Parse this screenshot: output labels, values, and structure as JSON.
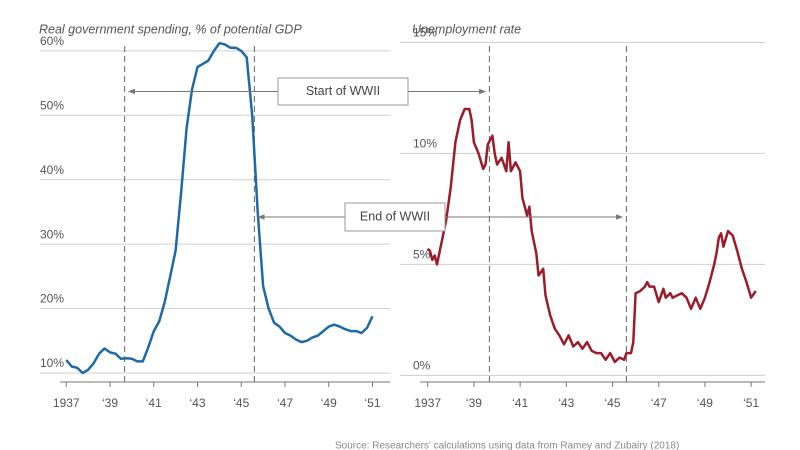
{
  "chart_data": [
    {
      "type": "line",
      "title": "Real government spending, % of potential GDP",
      "xlim": [
        1935.8,
        1951.8
      ],
      "ylim": [
        8.6,
        62
      ],
      "xticks": [
        1937,
        {
          "value": 1939,
          "label": "‘39"
        },
        {
          "value": 1941,
          "label": "‘41"
        },
        {
          "value": 1943,
          "label": "‘43"
        },
        {
          "value": 1945,
          "label": "‘45"
        },
        {
          "value": 1947,
          "label": "‘47"
        },
        {
          "value": 1949,
          "label": "‘49"
        },
        {
          "value": 1951,
          "label": "‘51"
        }
      ],
      "yticks": [
        {
          "value": 10,
          "label": "10%"
        },
        {
          "value": 20,
          "label": "20%"
        },
        {
          "value": 30,
          "label": "30%"
        },
        {
          "value": 40,
          "label": "40%"
        },
        {
          "value": 50,
          "label": "50%"
        },
        {
          "value": 60,
          "label": "60%"
        }
      ],
      "grid": true,
      "series": [
        {
          "color": "#1f6aa5",
          "x": [
            1937,
            1937.25,
            1937.5,
            1937.75,
            1938,
            1938.25,
            1938.5,
            1938.75,
            1939,
            1939.25,
            1939.5,
            1939.75,
            1940,
            1940.25,
            1940.5,
            1940.75,
            1941,
            1941.25,
            1941.5,
            1941.75,
            1942,
            1942.25,
            1942.5,
            1942.75,
            1943,
            1943.25,
            1943.5,
            1943.75,
            1944,
            1944.25,
            1944.5,
            1944.75,
            1945,
            1945.25,
            1945.5,
            1945.75,
            1946,
            1946.25,
            1946.5,
            1946.75,
            1947,
            1947.25,
            1947.5,
            1947.75,
            1948,
            1948.25,
            1948.5,
            1948.75,
            1949,
            1949.25,
            1949.5,
            1949.75,
            1950,
            1950.25,
            1950.5,
            1950.75,
            1951
          ],
          "values": [
            12,
            11,
            10.8,
            10,
            10.5,
            11.5,
            13,
            13.8,
            13.2,
            13,
            12.2,
            12.3,
            12.2,
            11.8,
            11.8,
            14,
            16.5,
            18,
            21,
            25,
            29,
            38,
            48,
            54,
            57.5,
            58,
            58.5,
            60,
            61.2,
            61,
            60.5,
            60.5,
            60,
            59,
            50,
            35,
            23.5,
            20,
            17.8,
            17.2,
            16.2,
            15.8,
            15.2,
            14.8,
            15,
            15.5,
            15.8,
            16.5,
            17.2,
            17.5,
            17.2,
            16.8,
            16.5,
            16.5,
            16.2,
            17,
            18.8
          ]
        }
      ]
    },
    {
      "type": "line",
      "title": "Unemployment rate",
      "xlim": [
        1935.8,
        1951.6
      ],
      "ylim": [
        -0.3,
        15.2
      ],
      "xticks": [
        1937,
        {
          "value": 1939,
          "label": "‘39"
        },
        {
          "value": 1941,
          "label": "‘41"
        },
        {
          "value": 1943,
          "label": "‘43"
        },
        {
          "value": 1945,
          "label": "‘45"
        },
        {
          "value": 1947,
          "label": "‘47"
        },
        {
          "value": 1949,
          "label": "‘49"
        },
        {
          "value": 1951,
          "label": "‘51"
        }
      ],
      "yticks": [
        {
          "value": 0,
          "label": "0%"
        },
        {
          "value": 5,
          "label": "5%"
        },
        {
          "value": 10,
          "label": "10%"
        },
        {
          "value": 15,
          "label": "15%"
        }
      ],
      "grid": true,
      "series": [
        {
          "color": "#9b1c2a",
          "x": [
            1937,
            1937.1,
            1937.2,
            1937.3,
            1937.4,
            1937.6,
            1937.8,
            1938,
            1938.2,
            1938.4,
            1938.6,
            1938.8,
            1938.9,
            1939,
            1939.2,
            1939.4,
            1939.5,
            1939.6,
            1939.8,
            1939.9,
            1940,
            1940.2,
            1940.4,
            1940.5,
            1940.6,
            1940.8,
            1941,
            1941.1,
            1941.3,
            1941.4,
            1941.5,
            1941.7,
            1941.8,
            1942,
            1942.1,
            1942.3,
            1942.5,
            1942.7,
            1942.9,
            1943.1,
            1943.3,
            1943.5,
            1943.7,
            1943.9,
            1944.1,
            1944.3,
            1944.5,
            1944.7,
            1944.9,
            1945.1,
            1945.3,
            1945.5,
            1945.6,
            1945.8,
            1945.9,
            1946,
            1946.2,
            1946.4,
            1946.5,
            1946.6,
            1946.8,
            1947,
            1947.2,
            1947.3,
            1947.5,
            1947.6,
            1947.8,
            1948,
            1948.2,
            1948.4,
            1948.6,
            1948.8,
            1949,
            1949.2,
            1949.4,
            1949.5,
            1949.6,
            1949.7,
            1949.8,
            1950,
            1950.2,
            1950.4,
            1950.6,
            1950.8,
            1951,
            1951.2
          ],
          "values": [
            5.7,
            5.6,
            5.2,
            5.4,
            5.0,
            6.0,
            7.0,
            8.5,
            10.5,
            11.5,
            12.0,
            12.0,
            11.5,
            10.5,
            10,
            9.3,
            9.5,
            10.4,
            10.8,
            10.0,
            9.5,
            9.8,
            9.2,
            10.5,
            9.2,
            9.6,
            9.2,
            8.0,
            7.2,
            7.6,
            6.5,
            5.5,
            4.5,
            4.8,
            3.6,
            2.7,
            2.1,
            1.8,
            1.4,
            1.8,
            1.3,
            1.5,
            1.2,
            1.5,
            1.1,
            1.0,
            1.0,
            0.7,
            1.0,
            0.6,
            0.8,
            0.7,
            1.0,
            1.0,
            1.5,
            3.7,
            3.8,
            4.0,
            4.2,
            4.0,
            4.0,
            3.3,
            3.9,
            3.5,
            3.7,
            3.5,
            3.6,
            3.7,
            3.5,
            3.0,
            3.5,
            3.0,
            3.5,
            4.2,
            5.0,
            5.5,
            6.2,
            6.4,
            5.8,
            6.5,
            6.3,
            5.6,
            4.8,
            4.2,
            3.5,
            3.8
          ]
        }
      ]
    }
  ],
  "annotations": [
    {
      "text": "Start of WWII",
      "x": 1939.67
    },
    {
      "text": "End of WWII",
      "x": 1945.6
    }
  ],
  "source": "Source: Researchers' calculations using data from Ramey and Zubairy (2018)"
}
